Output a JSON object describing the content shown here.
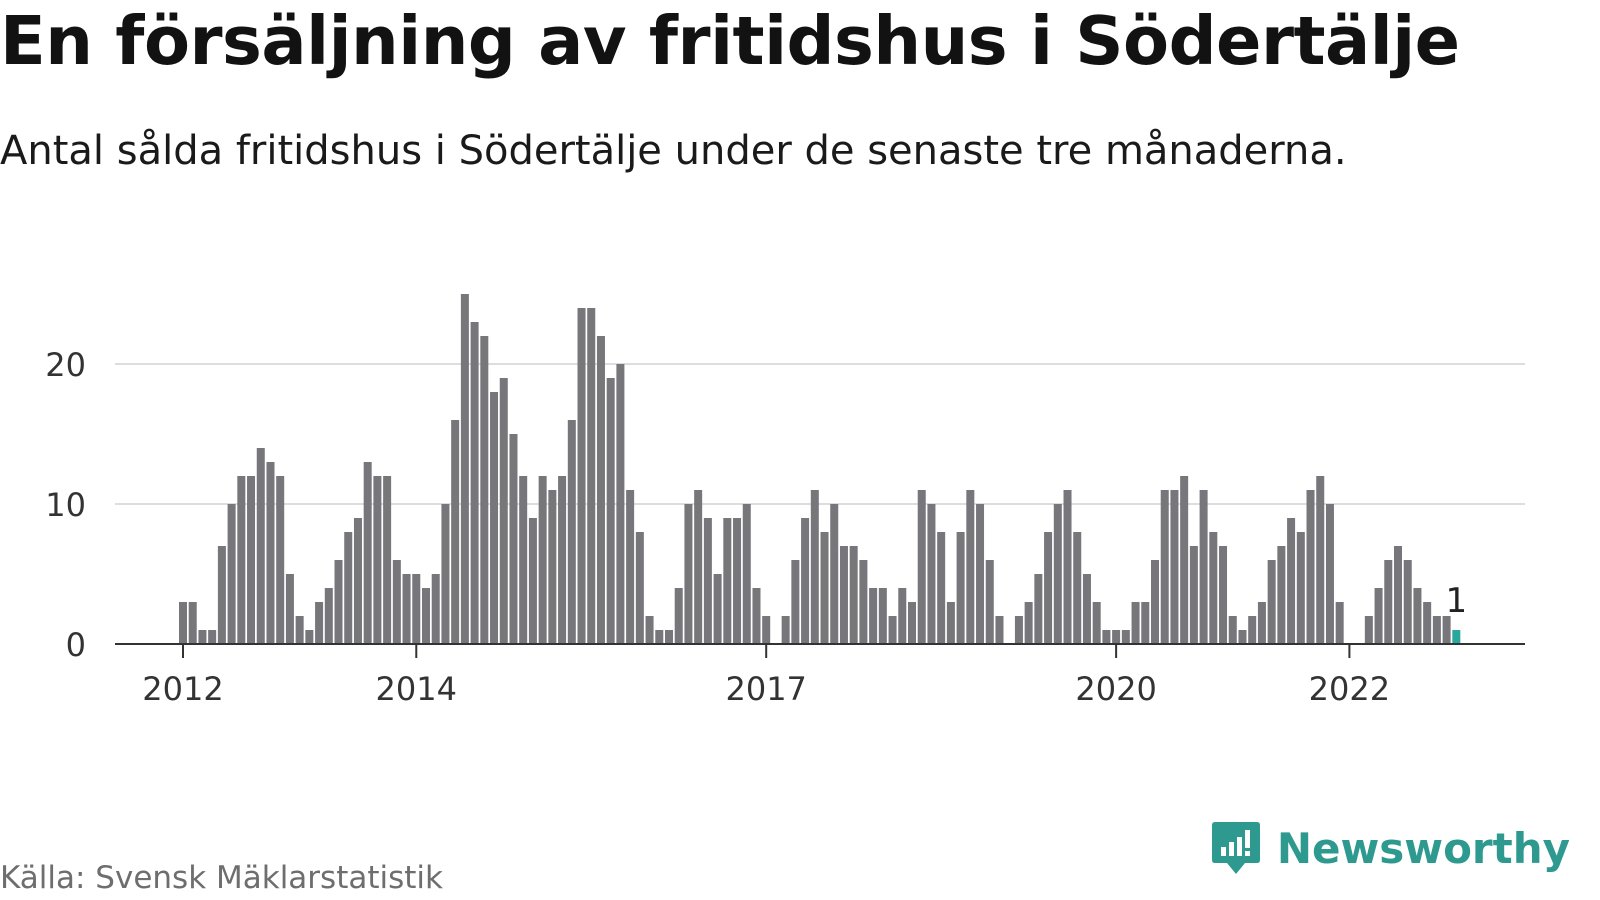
{
  "header": {
    "title": "En försäljning av fritidshus i Södertälje",
    "subtitle": "Antal sålda fritidshus i Södertälje under de senaste tre månaderna."
  },
  "footer": {
    "source": "Källa: Svensk Mäklarstatistik",
    "brand": "Newsworthy"
  },
  "colors": {
    "bar": "#76767b",
    "highlight": "#2aa79c",
    "grid": "#dddddd",
    "axis": "#333333",
    "brand": "#2e9a8f"
  },
  "chart_data": {
    "type": "bar",
    "x_start": "2012-01",
    "x_end": "2023-01",
    "x_ticks": [
      "2012",
      "2014",
      "2017",
      "2020",
      "2022"
    ],
    "y_ticks": [
      0,
      10,
      20
    ],
    "ylim": [
      0,
      25
    ],
    "grid": true,
    "highlight_label": "1",
    "highlight_value": 1,
    "values": [
      3,
      3,
      1,
      1,
      7,
      10,
      12,
      12,
      14,
      13,
      12,
      5,
      2,
      1,
      3,
      4,
      6,
      8,
      9,
      13,
      12,
      12,
      6,
      5,
      5,
      4,
      5,
      10,
      16,
      25,
      23,
      22,
      18,
      19,
      15,
      12,
      9,
      12,
      11,
      12,
      16,
      24,
      24,
      22,
      19,
      20,
      11,
      8,
      2,
      1,
      1,
      4,
      10,
      11,
      9,
      5,
      9,
      9,
      10,
      4,
      2,
      0,
      2,
      6,
      9,
      11,
      8,
      10,
      7,
      7,
      6,
      4,
      4,
      2,
      4,
      3,
      11,
      10,
      8,
      3,
      8,
      11,
      10,
      6,
      2,
      0,
      2,
      3,
      5,
      8,
      10,
      11,
      8,
      5,
      3,
      1,
      1,
      1,
      3,
      3,
      6,
      11,
      11,
      12,
      7,
      11,
      8,
      7,
      2,
      1,
      2,
      3,
      6,
      7,
      9,
      8,
      11,
      12,
      10,
      3,
      0,
      0,
      2,
      4,
      6,
      7,
      6,
      4,
      3,
      2,
      2,
      1
    ]
  }
}
